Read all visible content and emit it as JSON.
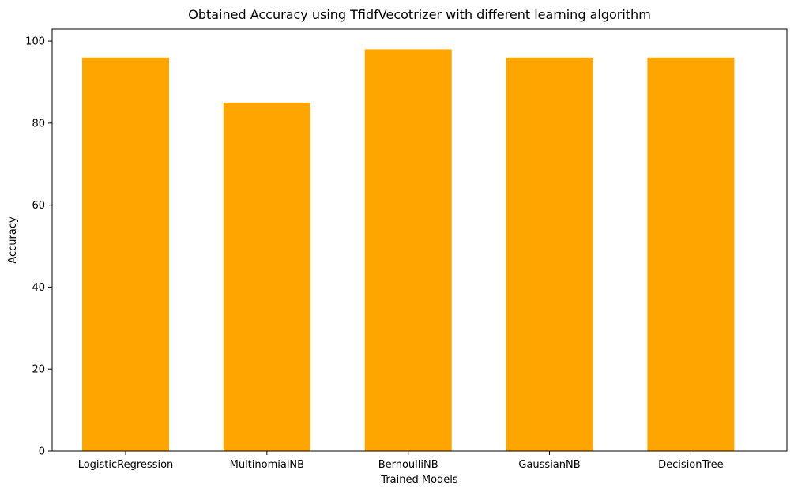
{
  "chart_data": {
    "type": "bar",
    "title": "Obtained Accuracy using TfidfVecotrizer with different learning algorithm",
    "xlabel": "Trained Models",
    "ylabel": "Accuracy",
    "categories": [
      "LogisticRegression",
      "MultinomialNB",
      "BernoulliNB",
      "GaussianNB",
      "DecisionTree"
    ],
    "values": [
      96,
      85,
      98,
      96,
      96
    ],
    "ylim": [
      0,
      102.9
    ],
    "yticks": [
      0,
      20,
      40,
      60,
      80,
      100
    ],
    "grid": false,
    "bar_color": "#ffa500"
  }
}
